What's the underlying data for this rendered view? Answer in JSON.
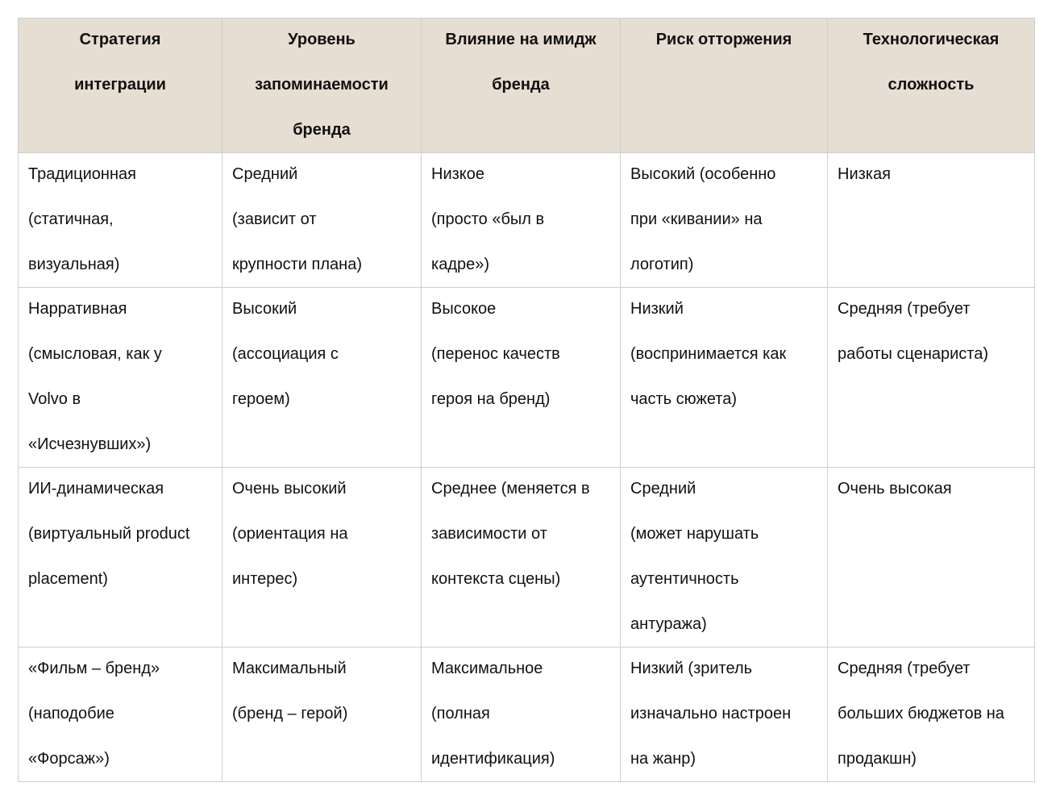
{
  "table": {
    "header": [
      [
        "Стратегия",
        "интеграции"
      ],
      [
        "Уровень",
        "запоминаемости",
        "бренда"
      ],
      [
        "Влияние на имидж",
        "бренда"
      ],
      [
        "Риск отторжения"
      ],
      [
        "Технологическая",
        "сложность"
      ]
    ],
    "rows": [
      [
        [
          "Традиционная",
          "(статичная,",
          "визуальная)"
        ],
        [
          "Средний",
          "(зависит от",
          "крупности плана)"
        ],
        [
          "Низкое",
          "(просто «был в",
          "кадре»)"
        ],
        [
          "Высокий  (особенно",
          "при «кивании» на",
          "логотип)"
        ],
        [
          "Низкая"
        ]
      ],
      [
        [
          "Нарративная",
          "(смысловая, как у",
          "Volvo в",
          "«Исчезнувших»)"
        ],
        [
          "Высокий",
          "(ассоциация с",
          "героем)"
        ],
        [
          "Высокое",
          "(перенос качеств",
          "героя на бренд)"
        ],
        [
          "Низкий",
          "(воспринимается как",
          "часть сюжета)"
        ],
        [
          "Средняя (требует",
          "работы сценариста)"
        ]
      ],
      [
        [
          "ИИ-динамическая",
          "(виртуальный product",
          "placement)"
        ],
        [
          "Очень высокий",
          "(ориентация на",
          "интерес)"
        ],
        [
          "Среднее (меняется в",
          "зависимости от",
          "контекста сцены)"
        ],
        [
          "Средний",
          "(может нарушать",
          "аутентичность",
          "антуража)"
        ],
        [
          "Очень высокая"
        ]
      ],
      [
        [
          "«Фильм – бренд»",
          "(наподобие",
          "«Форсаж»)"
        ],
        [
          "Максимальный",
          "(бренд – герой)"
        ],
        [
          "Максимальное",
          "(полная",
          "идентификация)"
        ],
        [
          "Низкий (зритель",
          "изначально настроен",
          "на жанр)"
        ],
        [
          "Средняя (требует",
          "больших бюджетов на",
          "продакшн)"
        ]
      ]
    ]
  }
}
